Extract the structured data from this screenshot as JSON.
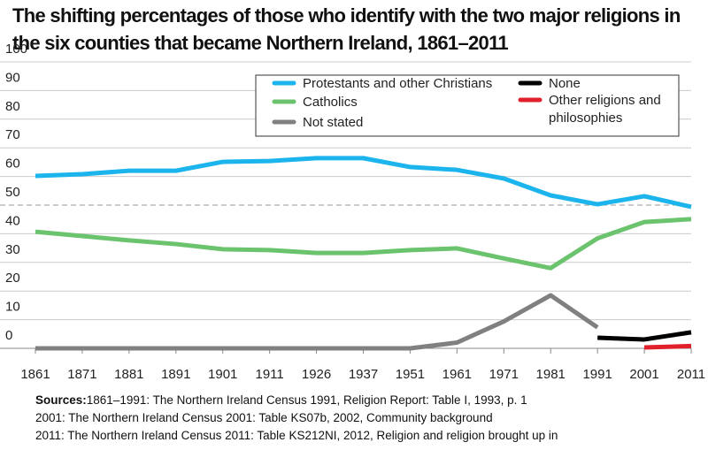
{
  "chart_data": {
    "type": "line",
    "title": "The shifting percentages of those who identify with the two major religions in the six counties that became Northern Ireland, 1861–2011",
    "categories": [
      "1861",
      "1871",
      "1881",
      "1891",
      "1901",
      "1911",
      "1926",
      "1937",
      "1951",
      "1961",
      "1971",
      "1981",
      "1991",
      "2001",
      "2011"
    ],
    "series": [
      {
        "name": "Protestants and other Christians",
        "color": "#1cb4ec",
        "values": [
          60.2,
          60.8,
          62,
          62,
          65.1,
          65.4,
          66.4,
          66.4,
          63.3,
          62.3,
          59.3,
          53.4,
          50.3,
          53.1,
          49.4
        ]
      },
      {
        "name": "Catholics",
        "color": "#6cc36e",
        "values": [
          40.7,
          39.2,
          37.7,
          36.4,
          34.6,
          34.3,
          33.3,
          33.3,
          34.3,
          34.9,
          31.4,
          28,
          38.4,
          44.1,
          45.1
        ]
      },
      {
        "name": "Not stated",
        "color": "#808080",
        "values": [
          0,
          0,
          0,
          0,
          0,
          0,
          0,
          0,
          0,
          2,
          9.4,
          18.5,
          7.3,
          null,
          null
        ]
      },
      {
        "name": "None",
        "color": "#000000",
        "values": [
          null,
          null,
          null,
          null,
          null,
          null,
          null,
          null,
          null,
          null,
          null,
          null,
          3.7,
          3.1,
          5.6
        ]
      },
      {
        "name": "Other religions and philosophies",
        "color": "#e0202a",
        "values": [
          null,
          null,
          null,
          null,
          null,
          null,
          null,
          null,
          null,
          null,
          null,
          null,
          null,
          0.3,
          0.8
        ]
      }
    ],
    "ylim": [
      0,
      100
    ],
    "yticks": [
      0,
      10,
      20,
      30,
      40,
      50,
      60,
      70,
      80,
      90,
      100
    ],
    "grid": true,
    "highlight_ytick": 50
  },
  "sources": {
    "label": "Sources:",
    "lines": [
      "1861–1991: The Northern Ireland Census 1991, Religion Report: Table I, 1993, p. 1",
      "2001: The Northern Ireland Census 2001: Table KS07b, 2002, Community background",
      "2011: The Northern Ireland Census 2011: Table KS212NI, 2012, Religion and religion brought up in"
    ]
  }
}
